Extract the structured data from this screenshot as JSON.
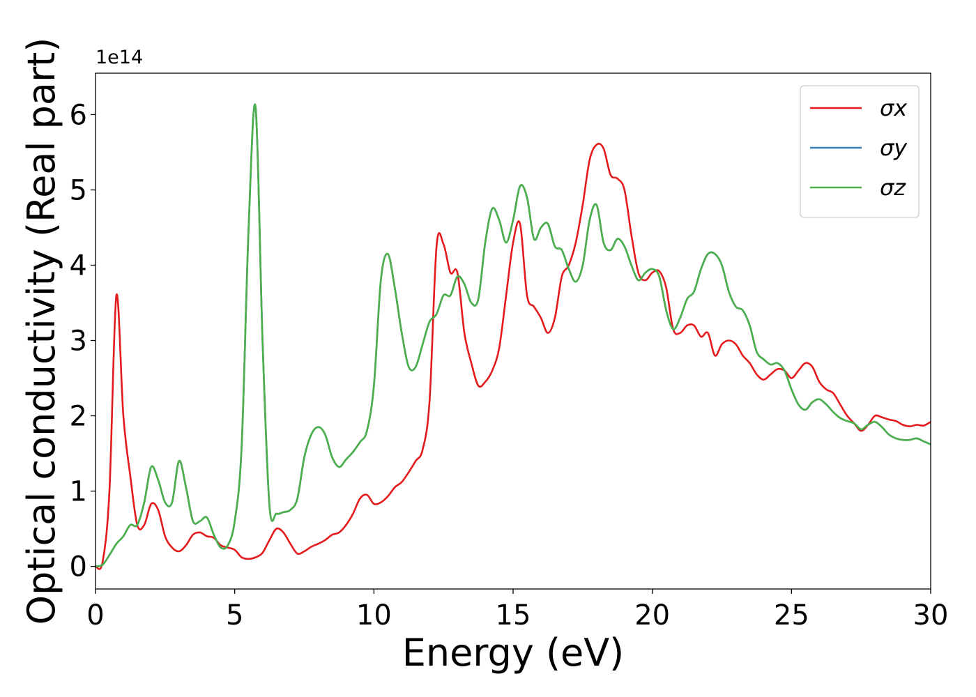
{
  "chart_data": {
    "type": "line",
    "xlabel": "Energy (eV)",
    "ylabel": "Optical conductivity (Real part)",
    "offset_label": "1e14",
    "xlim": [
      0,
      30
    ],
    "xticks": [
      0,
      5,
      10,
      15,
      20,
      25,
      30
    ],
    "ylim": [
      -0.3,
      6.55
    ],
    "yticks": [
      0,
      1,
      2,
      3,
      4,
      5,
      6
    ],
    "grid": false,
    "legend": "upper right",
    "x": [
      0,
      0.25,
      0.5,
      0.75,
      1,
      1.25,
      1.5,
      1.75,
      2,
      2.25,
      2.5,
      2.75,
      3,
      3.25,
      3.5,
      3.75,
      4,
      4.25,
      4.5,
      4.75,
      5,
      5.25,
      5.5,
      5.75,
      6,
      6.25,
      6.5,
      6.75,
      7,
      7.25,
      7.5,
      7.75,
      8,
      8.25,
      8.5,
      8.75,
      9,
      9.25,
      9.5,
      9.75,
      10,
      10.25,
      10.5,
      10.75,
      11,
      11.25,
      11.5,
      11.75,
      12,
      12.25,
      12.5,
      12.75,
      13,
      13.25,
      13.5,
      13.75,
      14,
      14.25,
      14.5,
      14.75,
      15,
      15.25,
      15.5,
      15.75,
      16,
      16.25,
      16.5,
      16.75,
      17,
      17.25,
      17.5,
      17.75,
      18,
      18.25,
      18.5,
      18.75,
      19,
      19.25,
      19.5,
      19.75,
      20,
      20.25,
      20.5,
      20.75,
      21,
      21.25,
      21.5,
      21.75,
      22,
      22.25,
      22.5,
      22.75,
      23,
      23.25,
      23.5,
      23.75,
      24,
      24.25,
      24.5,
      24.75,
      25,
      25.25,
      25.5,
      25.75,
      26,
      26.25,
      26.5,
      26.75,
      27,
      27.25,
      27.5,
      27.75,
      28,
      28.25,
      28.5,
      28.75,
      29,
      29.25,
      29.5,
      29.75,
      30
    ],
    "series": [
      {
        "name": "σx",
        "color": "#e41a1c",
        "values": [
          0,
          0.05,
          1.0,
          3.6,
          2.0,
          1.2,
          0.55,
          0.55,
          0.83,
          0.75,
          0.4,
          0.25,
          0.2,
          0.28,
          0.42,
          0.45,
          0.4,
          0.38,
          0.28,
          0.25,
          0.22,
          0.12,
          0.1,
          0.12,
          0.18,
          0.35,
          0.5,
          0.45,
          0.3,
          0.17,
          0.2,
          0.26,
          0.3,
          0.35,
          0.42,
          0.45,
          0.55,
          0.7,
          0.9,
          0.95,
          0.83,
          0.85,
          0.93,
          1.05,
          1.12,
          1.25,
          1.4,
          1.55,
          2.2,
          4.25,
          4.28,
          3.9,
          3.9,
          3.1,
          2.7,
          2.4,
          2.45,
          2.6,
          2.9,
          3.6,
          4.3,
          4.55,
          3.6,
          3.45,
          3.3,
          3.1,
          3.3,
          3.85,
          4.0,
          4.3,
          4.8,
          5.4,
          5.6,
          5.55,
          5.2,
          5.15,
          5.0,
          4.4,
          3.9,
          3.8,
          3.9,
          3.92,
          3.7,
          3.15,
          3.1,
          3.2,
          3.2,
          3.05,
          3.1,
          2.8,
          2.95,
          3.0,
          2.95,
          2.8,
          2.7,
          2.55,
          2.48,
          2.55,
          2.62,
          2.6,
          2.5,
          2.6,
          2.7,
          2.65,
          2.45,
          2.35,
          2.3,
          2.15,
          2.0,
          1.9,
          1.8,
          1.88,
          2.0,
          1.98,
          1.95,
          1.93,
          1.88,
          1.86,
          1.88,
          1.87,
          1.92
        ]
      },
      {
        "name": "σy",
        "color": "#377eb8",
        "values": [
          0,
          0.02,
          0.15,
          0.3,
          0.4,
          0.55,
          0.55,
          0.85,
          1.32,
          1.15,
          0.85,
          0.85,
          1.4,
          1.05,
          0.6,
          0.6,
          0.65,
          0.42,
          0.25,
          0.28,
          0.6,
          1.6,
          4.5,
          6.1,
          3.0,
          0.8,
          0.7,
          0.72,
          0.75,
          0.9,
          1.45,
          1.75,
          1.85,
          1.75,
          1.45,
          1.32,
          1.42,
          1.52,
          1.65,
          1.8,
          2.4,
          3.8,
          4.15,
          3.7,
          3.1,
          2.65,
          2.65,
          2.95,
          3.25,
          3.35,
          3.6,
          3.6,
          3.85,
          3.75,
          3.5,
          3.55,
          4.3,
          4.75,
          4.6,
          4.3,
          4.6,
          5.05,
          4.9,
          4.35,
          4.5,
          4.55,
          4.25,
          4.2,
          3.95,
          3.78,
          4.0,
          4.6,
          4.8,
          4.3,
          4.2,
          4.35,
          4.25,
          4.0,
          3.8,
          3.9,
          3.95,
          3.85,
          3.4,
          3.15,
          3.3,
          3.55,
          3.65,
          3.95,
          4.15,
          4.15,
          4.0,
          3.65,
          3.45,
          3.4,
          3.2,
          2.85,
          2.75,
          2.68,
          2.7,
          2.6,
          2.35,
          2.15,
          2.08,
          2.18,
          2.22,
          2.15,
          2.05,
          1.97,
          1.93,
          1.9,
          1.82,
          1.88,
          1.92,
          1.85,
          1.75,
          1.7,
          1.68,
          1.68,
          1.7,
          1.66,
          1.62
        ]
      },
      {
        "name": "σz",
        "color": "#4daf4a",
        "values": [
          0,
          0.02,
          0.15,
          0.3,
          0.4,
          0.55,
          0.55,
          0.85,
          1.32,
          1.15,
          0.85,
          0.85,
          1.4,
          1.05,
          0.6,
          0.6,
          0.65,
          0.42,
          0.25,
          0.28,
          0.6,
          1.6,
          4.5,
          6.1,
          3.0,
          0.8,
          0.7,
          0.72,
          0.75,
          0.9,
          1.45,
          1.75,
          1.85,
          1.75,
          1.45,
          1.32,
          1.42,
          1.52,
          1.65,
          1.8,
          2.4,
          3.8,
          4.15,
          3.7,
          3.1,
          2.65,
          2.65,
          2.95,
          3.25,
          3.35,
          3.6,
          3.6,
          3.85,
          3.75,
          3.5,
          3.55,
          4.3,
          4.75,
          4.6,
          4.3,
          4.6,
          5.05,
          4.9,
          4.35,
          4.5,
          4.55,
          4.25,
          4.2,
          3.95,
          3.78,
          4.0,
          4.6,
          4.8,
          4.3,
          4.2,
          4.35,
          4.25,
          4.0,
          3.8,
          3.9,
          3.95,
          3.85,
          3.4,
          3.15,
          3.3,
          3.55,
          3.65,
          3.95,
          4.15,
          4.15,
          4.0,
          3.65,
          3.45,
          3.4,
          3.2,
          2.85,
          2.75,
          2.68,
          2.7,
          2.6,
          2.35,
          2.15,
          2.08,
          2.18,
          2.22,
          2.15,
          2.05,
          1.97,
          1.93,
          1.9,
          1.82,
          1.88,
          1.92,
          1.85,
          1.75,
          1.7,
          1.68,
          1.68,
          1.7,
          1.66,
          1.62
        ]
      }
    ]
  }
}
